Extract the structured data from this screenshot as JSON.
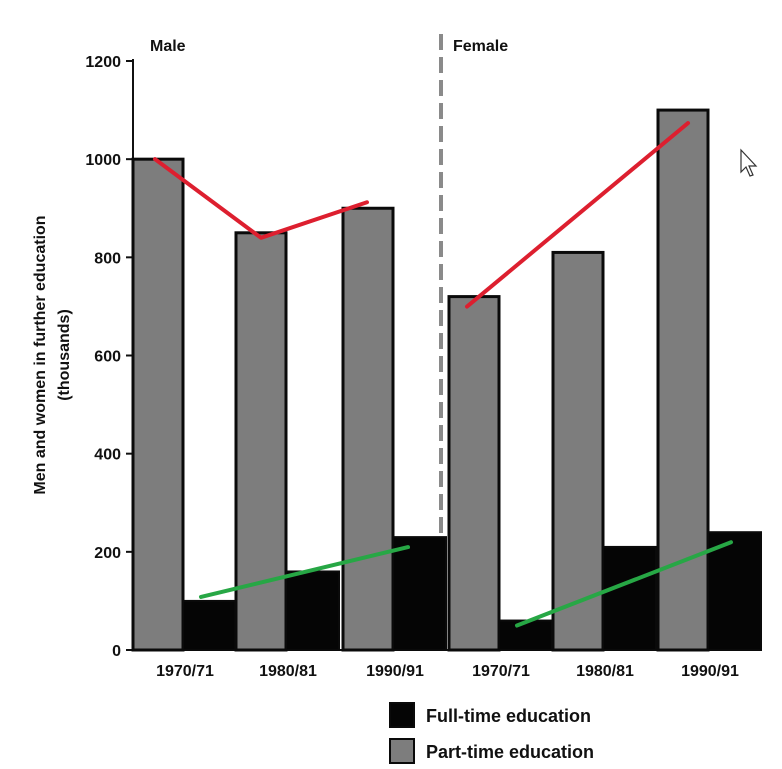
{
  "chart_data": {
    "type": "bar",
    "ylabel": "Men and women in further education (thousands)",
    "ylabel_lines": [
      "Men and women in further education",
      "(thousands)"
    ],
    "ylim": [
      0,
      1200
    ],
    "yticks": [
      0,
      200,
      400,
      600,
      800,
      1000,
      1200
    ],
    "panels": [
      {
        "label": "Male",
        "categories": [
          "1970/71",
          "1980/81",
          "1990/91"
        ],
        "series": [
          {
            "name": "Part-time education",
            "values": [
              1000,
              850,
              900
            ]
          },
          {
            "name": "Full-time education",
            "values": [
              100,
              160,
              230
            ]
          }
        ]
      },
      {
        "label": "Female",
        "categories": [
          "1970/71",
          "1980/81",
          "1990/91"
        ],
        "series": [
          {
            "name": "Part-time education",
            "values": [
              720,
              810,
              1100
            ]
          },
          {
            "name": "Full-time education",
            "values": [
              60,
              210,
              240
            ]
          }
        ]
      }
    ],
    "legend": {
      "position": "bottom-right",
      "items": [
        {
          "label": "Full-time education",
          "color": "#050505"
        },
        {
          "label": "Part-time education",
          "color": "#7d7d7d"
        }
      ]
    },
    "annotations": {
      "red_trend_color": "#dd1f2f",
      "green_trend_color": "#27a745"
    },
    "colors": {
      "part_time": "#7d7d7d",
      "full_time": "#050505",
      "divider": "#8a8a8a"
    }
  }
}
